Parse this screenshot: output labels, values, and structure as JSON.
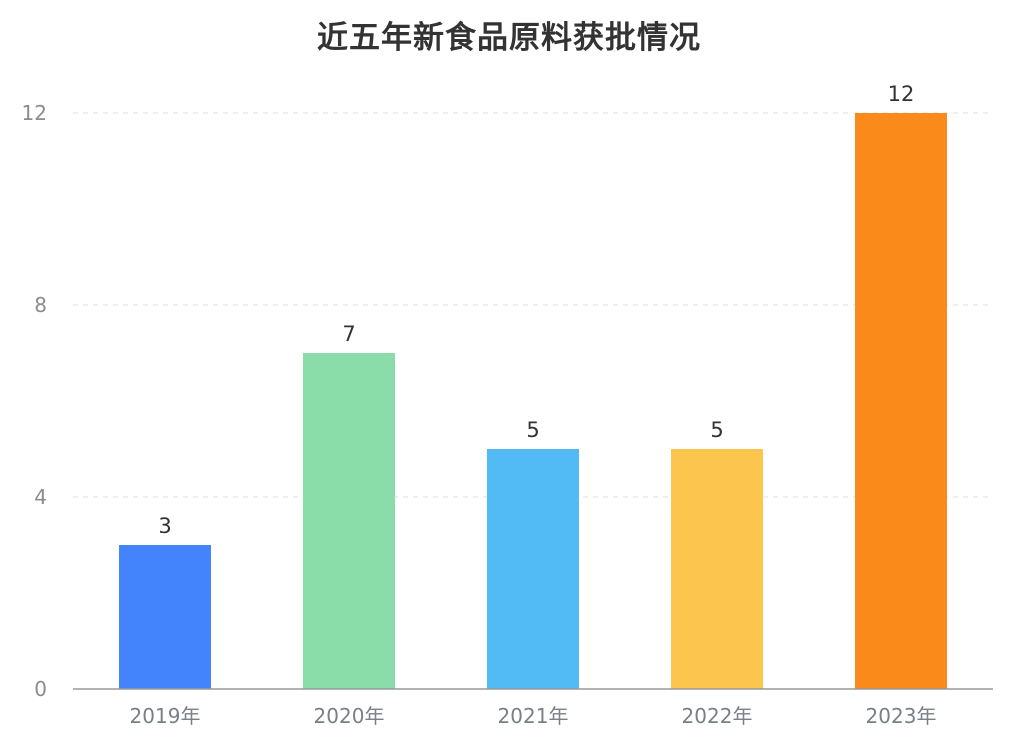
{
  "chart_data": {
    "type": "bar",
    "title": "近五年新食品原料获批情况",
    "categories": [
      "2019年",
      "2020年",
      "2021年",
      "2022年",
      "2023年"
    ],
    "values": [
      3,
      7,
      5,
      5,
      12
    ],
    "colors": [
      "#4383fb",
      "#8adca8",
      "#52baf5",
      "#fcc54e",
      "#fa8a1a"
    ],
    "ylim": [
      0,
      12
    ],
    "yticks": [
      0,
      4,
      8,
      12
    ],
    "grid": true,
    "legend": "none",
    "data_labels": true
  }
}
